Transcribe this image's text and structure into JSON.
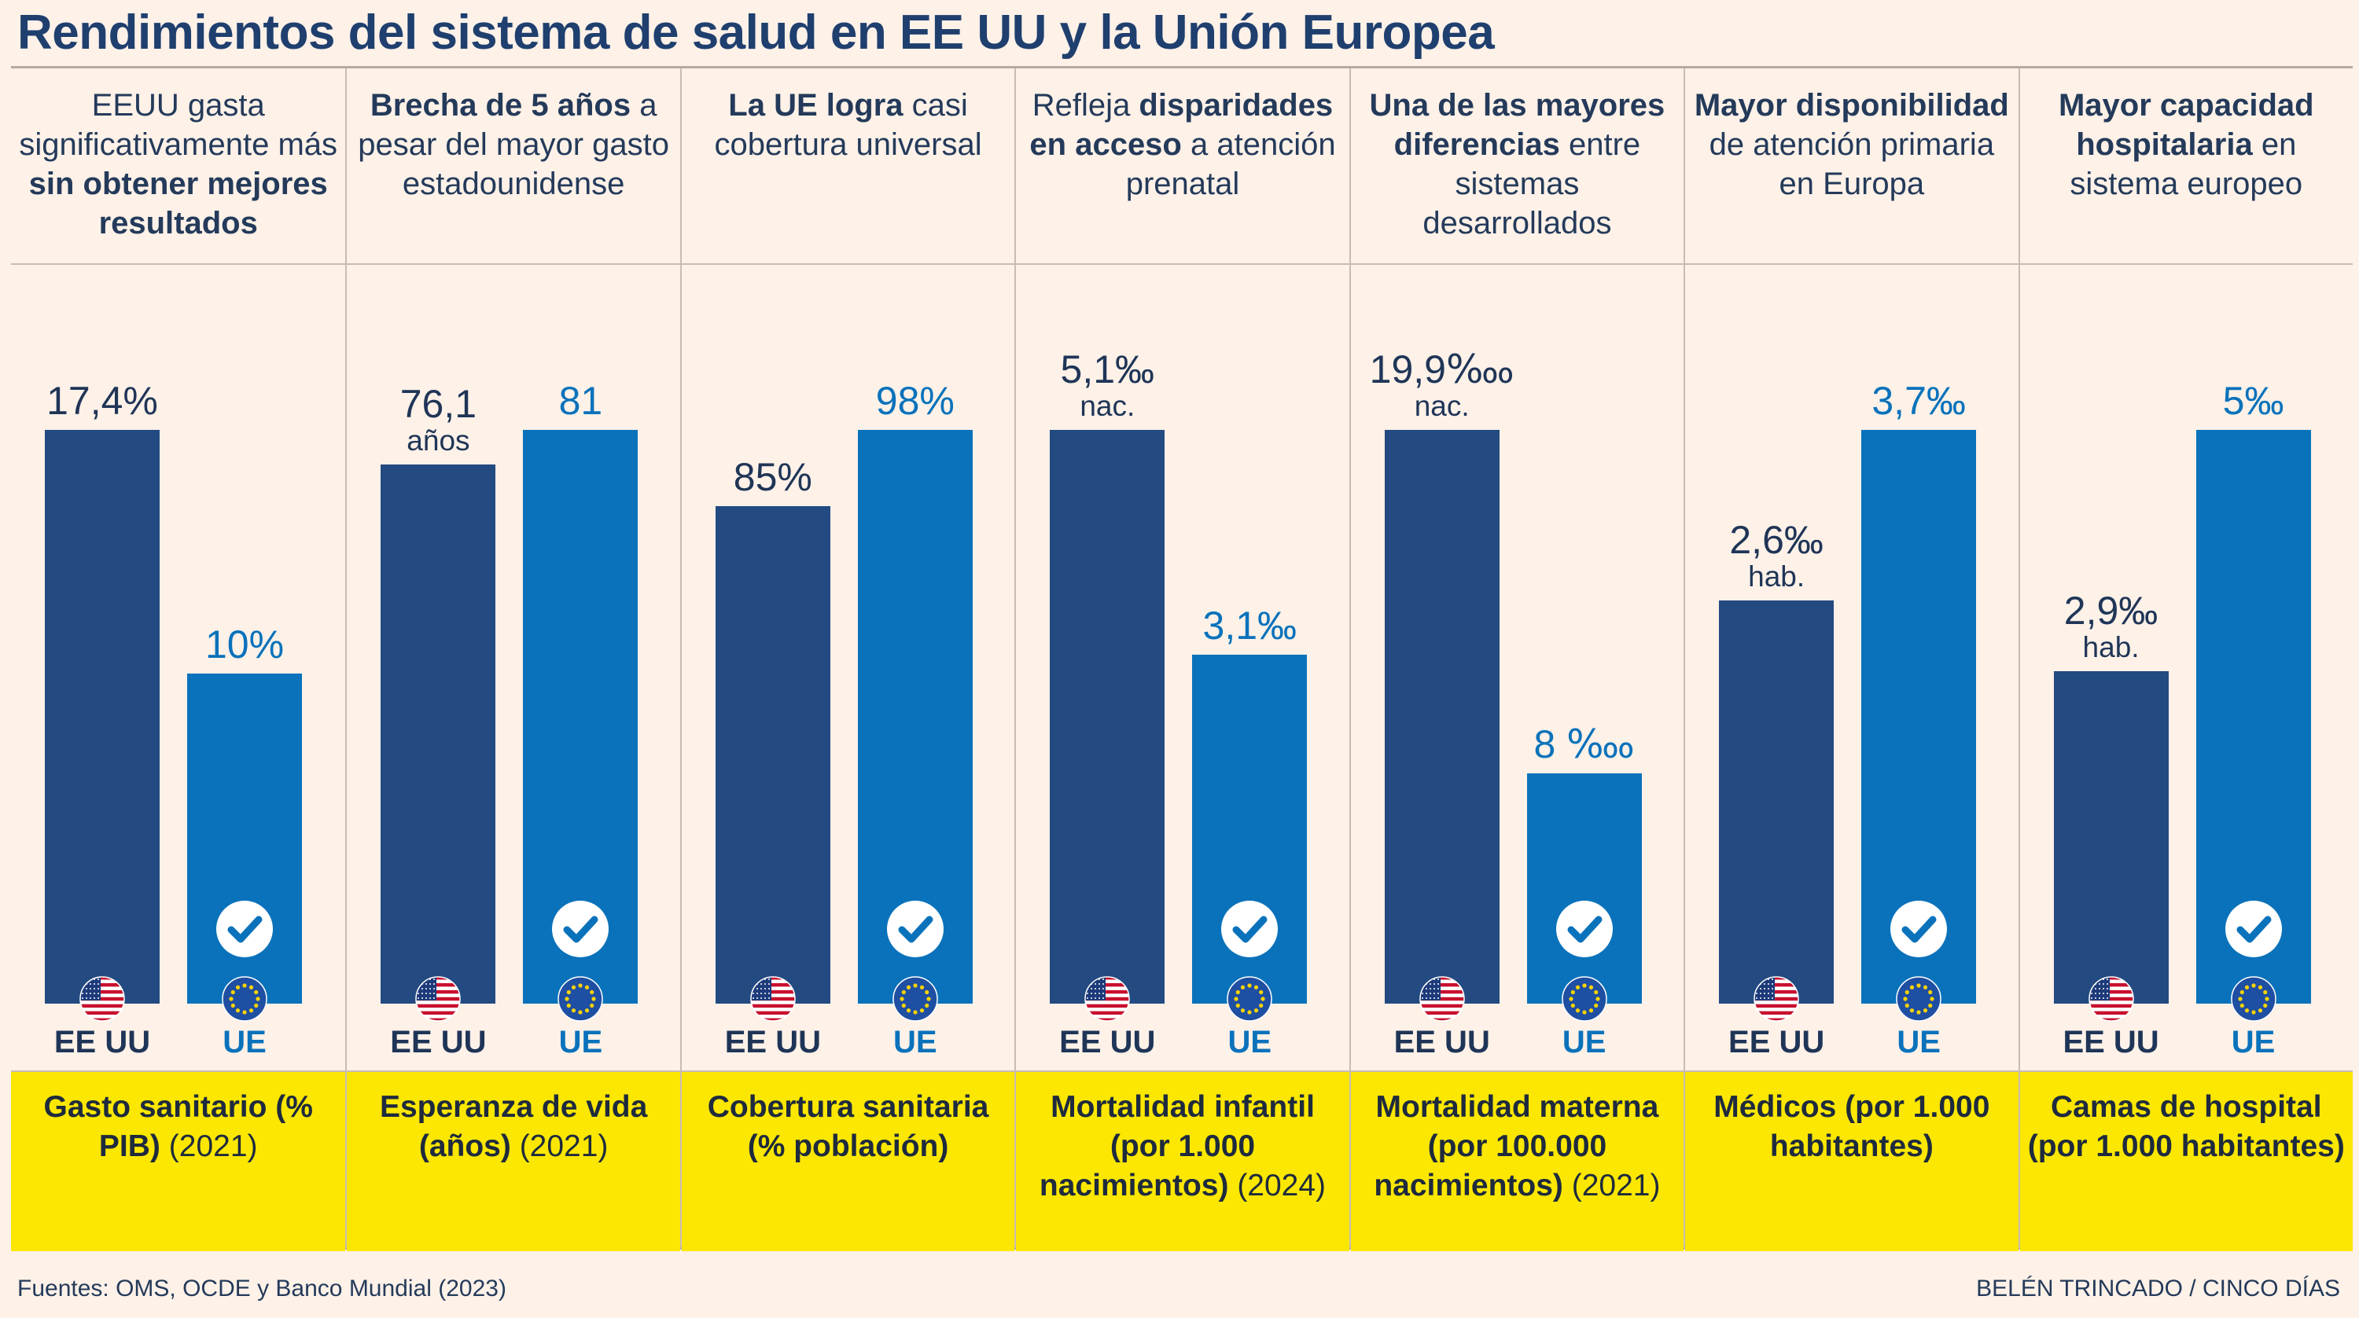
{
  "title": "Rendimientos del sistema de salud en EE UU y la Unión Europea",
  "source": "Fuentes: OMS, OCDE y Banco Mundial (2023)",
  "credit": "BELÉN TRINCADO / CINCO DÍAS",
  "colors": {
    "us": "#234a81",
    "eu": "#0a72bb",
    "background": "#fdf1e8",
    "metric_box": "#fbe702"
  },
  "labels": {
    "us": "EE UU",
    "eu": "UE"
  },
  "icons": {
    "us_flag": "us-flag-icon",
    "eu_flag": "eu-flag-icon",
    "check": "checkmark-circle-icon"
  },
  "chart_data": [
    {
      "type": "bar",
      "subtitle_parts": [
        {
          "t": "EEUU gasta significativamente más ",
          "b": false
        },
        {
          "t": "sin obtener mejores resultados",
          "b": true
        }
      ],
      "metric_parts": [
        {
          "t": "Gasto sanitario (% PIB) ",
          "b": true
        },
        {
          "t": "(2021)",
          "b": false
        }
      ],
      "categories": [
        "EE UU",
        "UE"
      ],
      "values": [
        17.4,
        10
      ],
      "value_labels": [
        "17,4%",
        "10%"
      ],
      "value_sublabels": [
        "",
        ""
      ],
      "winner": "UE"
    },
    {
      "type": "bar",
      "subtitle_parts": [
        {
          "t": "Brecha de 5 años ",
          "b": true
        },
        {
          "t": "a pesar del mayor gasto estadounidense",
          "b": false
        }
      ],
      "metric_parts": [
        {
          "t": "Esperanza de vida (años) ",
          "b": true
        },
        {
          "t": "(2021)",
          "b": false
        }
      ],
      "categories": [
        "EE UU",
        "UE"
      ],
      "values": [
        76.1,
        81
      ],
      "value_labels": [
        "76,1",
        "81"
      ],
      "value_sublabels": [
        "años",
        ""
      ],
      "winner": "UE"
    },
    {
      "type": "bar",
      "subtitle_parts": [
        {
          "t": "La UE logra ",
          "b": true
        },
        {
          "t": "casi cobertura universal",
          "b": false
        }
      ],
      "metric_parts": [
        {
          "t": "Cobertura sanitaria (% población)",
          "b": true
        }
      ],
      "categories": [
        "EE UU",
        "UE"
      ],
      "values": [
        85,
        98
      ],
      "value_labels": [
        "85%",
        "98%"
      ],
      "value_sublabels": [
        "",
        ""
      ],
      "winner": "UE"
    },
    {
      "type": "bar",
      "subtitle_parts": [
        {
          "t": "Refleja ",
          "b": false
        },
        {
          "t": "disparidades en acceso ",
          "b": true
        },
        {
          "t": "a atención prenatal",
          "b": false
        }
      ],
      "metric_parts": [
        {
          "t": "Mortalidad infantil (por 1.000 nacimientos) ",
          "b": true
        },
        {
          "t": "(2024)",
          "b": false
        }
      ],
      "categories": [
        "EE UU",
        "UE"
      ],
      "values": [
        5.1,
        3.1
      ],
      "value_labels": [
        "5,1‰",
        "3,1‰"
      ],
      "value_sublabels": [
        "nac.",
        ""
      ],
      "winner": "UE"
    },
    {
      "type": "bar",
      "subtitle_parts": [
        {
          "t": "Una de las mayores diferencias ",
          "b": true
        },
        {
          "t": "entre sistemas desarrollados",
          "b": false
        }
      ],
      "metric_parts": [
        {
          "t": "Mortalidad materna (por 100.000 nacimientos) ",
          "b": true
        },
        {
          "t": "(2021)",
          "b": false
        }
      ],
      "categories": [
        "EE UU",
        "UE"
      ],
      "values": [
        19.9,
        8
      ],
      "value_labels": [
        "19,9‱",
        "8 ‱"
      ],
      "value_sublabels": [
        "nac.",
        ""
      ],
      "winner": "UE"
    },
    {
      "type": "bar",
      "subtitle_parts": [
        {
          "t": "Mayor disponibilidad ",
          "b": true
        },
        {
          "t": "de atención primaria en Europa",
          "b": false
        }
      ],
      "metric_parts": [
        {
          "t": "Médicos (por 1.000 habitantes)",
          "b": true
        }
      ],
      "categories": [
        "EE UU",
        "UE"
      ],
      "values": [
        2.6,
        3.7
      ],
      "value_labels": [
        "2,6‰",
        "3,7‰"
      ],
      "value_sublabels": [
        "hab.",
        ""
      ],
      "winner": "UE"
    },
    {
      "type": "bar",
      "subtitle_parts": [
        {
          "t": "Mayor capacidad hospitalaria ",
          "b": true
        },
        {
          "t": "en sistema europeo",
          "b": false
        }
      ],
      "metric_parts": [
        {
          "t": "Camas de hospital (por 1.000 habitantes)",
          "b": true
        }
      ],
      "categories": [
        "EE UU",
        "UE"
      ],
      "values": [
        2.9,
        5
      ],
      "value_labels": [
        "2,9‰",
        "5‰"
      ],
      "value_sublabels": [
        "hab.",
        ""
      ],
      "winner": "UE"
    }
  ]
}
